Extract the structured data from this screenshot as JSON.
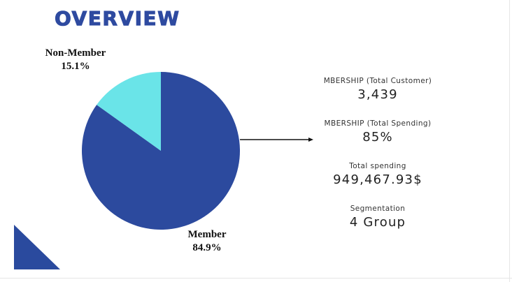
{
  "title": "OVERVIEW",
  "colors": {
    "title": "#2e4aa0",
    "member": "#2c4a9e",
    "non_member": "#6ae4e8",
    "accent_triangle": "#2a4a9e"
  },
  "chart_data": {
    "type": "pie",
    "slices": [
      {
        "label": "Member",
        "value": 84.9,
        "display": "84.9%",
        "color": "#2c4a9e"
      },
      {
        "label": "Non-Member",
        "value": 15.1,
        "display": "15.1%",
        "color": "#6ae4e8"
      }
    ]
  },
  "stats": [
    {
      "label": "MBERSHIP (Total Customer)",
      "value": "3,439"
    },
    {
      "label": "MBERSHIP (Total Spending)",
      "value": "85%"
    },
    {
      "label": "Total spending",
      "value": "949,467.93$"
    },
    {
      "label": "Segmentation",
      "value": "4 Group"
    }
  ]
}
